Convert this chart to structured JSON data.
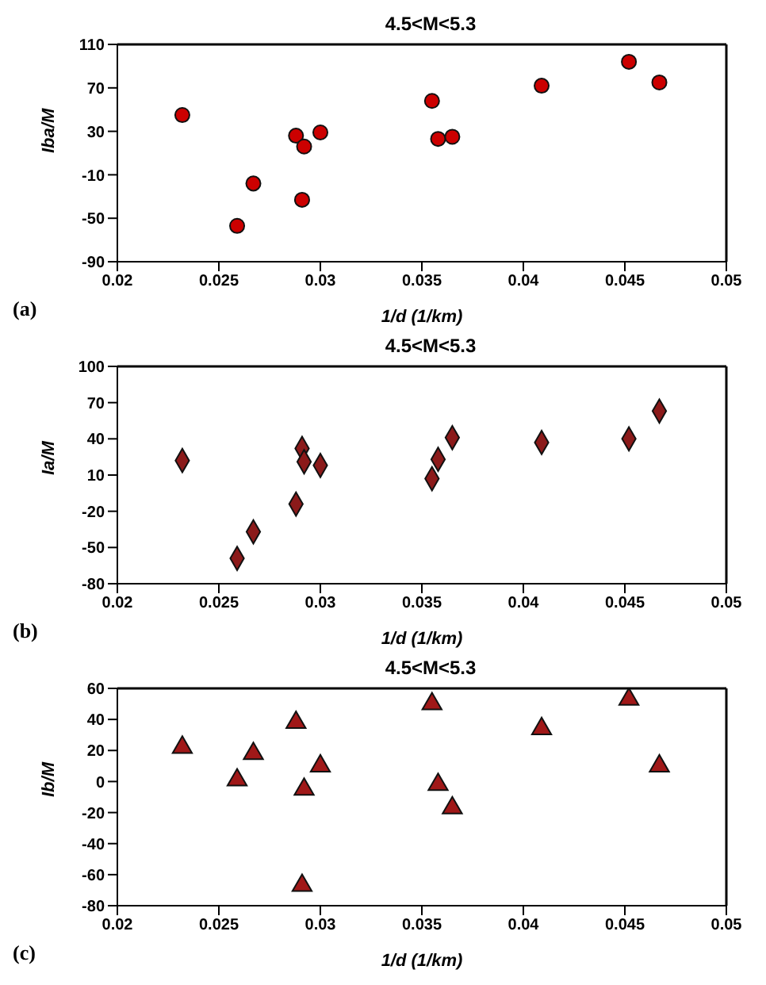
{
  "chart_data": [
    {
      "type": "scatter",
      "title": "4.5<M<5.3",
      "xlabel": "1/d (1/km)",
      "ylabel": "Iba/M",
      "annotations": [
        "(a)"
      ],
      "marker": "circle",
      "grid": false,
      "x": [
        0.0232,
        0.0259,
        0.0267,
        0.0288,
        0.0291,
        0.0292,
        0.03,
        0.0355,
        0.0358,
        0.0365,
        0.0409,
        0.0452,
        0.0467
      ],
      "series": [
        {
          "color": "#cc0000",
          "values": [
            45,
            -57,
            -18,
            26,
            -33,
            16,
            29,
            58,
            23,
            25,
            72,
            94,
            75
          ]
        }
      ],
      "xlim": [
        0.02,
        0.05
      ],
      "xticks": [
        0.02,
        0.025,
        0.03,
        0.035,
        0.04,
        0.045,
        0.05
      ],
      "ylim": [
        -90,
        110
      ],
      "yticks": [
        -90,
        -50,
        -10,
        30,
        70,
        110
      ]
    },
    {
      "type": "scatter",
      "title": "4.5<M<5.3",
      "xlabel": "1/d (1/km)",
      "ylabel": "Ia/M",
      "annotations": [
        "(b)"
      ],
      "marker": "diamond",
      "grid": false,
      "x": [
        0.0232,
        0.0259,
        0.0267,
        0.0288,
        0.0291,
        0.0292,
        0.03,
        0.0355,
        0.0358,
        0.0365,
        0.0409,
        0.0452,
        0.0467
      ],
      "series": [
        {
          "color": "#8b1a1a",
          "values": [
            22,
            -59,
            -37,
            -14,
            32,
            21,
            18,
            7,
            23,
            41,
            37,
            40,
            63
          ]
        }
      ],
      "xlim": [
        0.02,
        0.05
      ],
      "xticks": [
        0.02,
        0.025,
        0.03,
        0.035,
        0.04,
        0.045,
        0.05
      ],
      "ylim": [
        -80,
        100
      ],
      "yticks": [
        -80,
        -50,
        -20,
        10,
        40,
        70,
        100
      ]
    },
    {
      "type": "scatter",
      "title": "4.5<M<5.3",
      "xlabel": "1/d (1/km)",
      "ylabel": "Ib/M",
      "annotations": [
        "(c)"
      ],
      "marker": "triangle",
      "grid": false,
      "x": [
        0.0232,
        0.0259,
        0.0267,
        0.0288,
        0.0291,
        0.0292,
        0.03,
        0.0355,
        0.0358,
        0.0365,
        0.0409,
        0.0452,
        0.0467
      ],
      "series": [
        {
          "color": "#a01818",
          "values": [
            22,
            1,
            18,
            38,
            -67,
            -5,
            10,
            50,
            -2,
            -17,
            34,
            53,
            10
          ]
        }
      ],
      "xlim": [
        0.02,
        0.05
      ],
      "xticks": [
        0.02,
        0.025,
        0.03,
        0.035,
        0.04,
        0.045,
        0.05
      ],
      "ylim": [
        -80,
        60
      ],
      "yticks": [
        -80,
        -60,
        -40,
        -20,
        0,
        20,
        40,
        60
      ]
    }
  ]
}
